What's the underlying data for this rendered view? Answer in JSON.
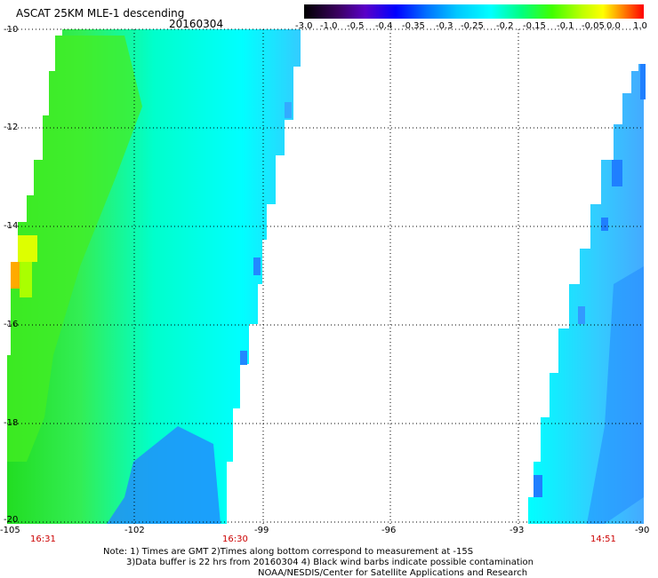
{
  "header": {
    "title": "ASCAT 25KM MLE-1 descending",
    "date": "20160304"
  },
  "colorbar": {
    "ticks": [
      "-3.0",
      "-1.0",
      "-0.5",
      "-0.4",
      "-0.35",
      "-0.3",
      "-0.25",
      "-0.2",
      "-0.15",
      "-0.1",
      "-0.05",
      "0.0",
      "1.0"
    ]
  },
  "map": {
    "x_ticks": [
      "-105",
      "-102",
      "-99",
      "-96",
      "-93",
      "-90"
    ],
    "y_ticks": [
      "-10",
      "-12",
      "-14",
      "-16",
      "-18",
      "-20"
    ],
    "times": [
      "16:31",
      "16:30",
      "14:51"
    ],
    "colors": {
      "west_green": "#33ee33",
      "cyan": "#00ffff",
      "blue": "#1f8fff",
      "yellow": "#ffee00",
      "orange": "#ffaa00",
      "grid": "#000000",
      "time_label": "#cc0000"
    }
  },
  "notes": {
    "line1": "Note: 1) Times are GMT 2)Times along bottom correspond to measurement at -15S",
    "line2": "3)Data buffer is 22 hrs from 20160304 4) Black wind barbs indicate possible contamination",
    "line3": "NOAA/NESDIS/Center for Satellite Applications and Research"
  }
}
